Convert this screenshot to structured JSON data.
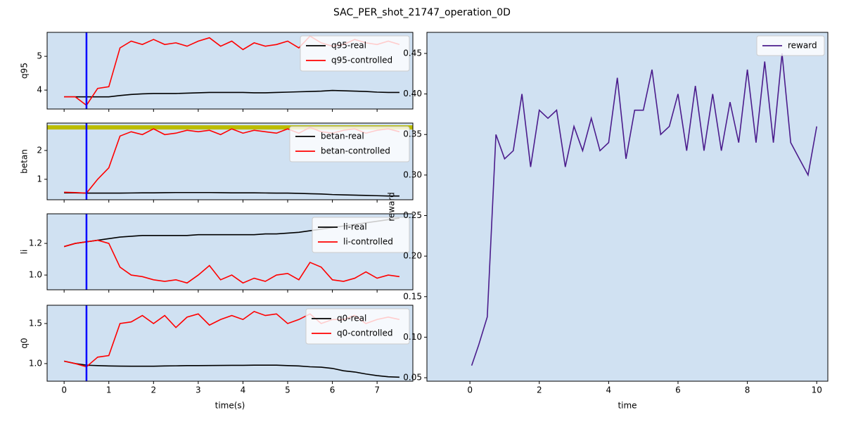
{
  "title": "SAC_PER_shot_21747_operation_0D",
  "chart_data": [
    {
      "type": "line",
      "ylabel": "q95",
      "xlim": [
        -0.38,
        7.8
      ],
      "ylim": [
        3.44,
        5.71
      ],
      "xticks": [
        0,
        1,
        2,
        3,
        4,
        5,
        6,
        7
      ],
      "yticks": [
        4,
        5
      ],
      "show_xtick_labels": false,
      "vline": 0.5,
      "vline_color": "#0000ff",
      "legend": "upper right",
      "background": "#d0e1f2",
      "x": [
        0,
        0.25,
        0.5,
        0.75,
        1,
        1.25,
        1.5,
        1.75,
        2,
        2.25,
        2.5,
        2.75,
        3,
        3.25,
        3.5,
        3.75,
        4,
        4.25,
        4.5,
        4.75,
        5,
        5.25,
        5.5,
        5.75,
        6,
        6.25,
        6.5,
        6.75,
        7,
        7.25,
        7.5
      ],
      "series": [
        {
          "name": "q95-real",
          "color": "#000000",
          "values": [
            3.8,
            3.8,
            3.8,
            3.8,
            3.8,
            3.84,
            3.87,
            3.89,
            3.9,
            3.9,
            3.9,
            3.91,
            3.92,
            3.93,
            3.93,
            3.93,
            3.93,
            3.92,
            3.92,
            3.93,
            3.94,
            3.95,
            3.96,
            3.97,
            3.99,
            3.98,
            3.97,
            3.96,
            3.94,
            3.93,
            3.93
          ]
        },
        {
          "name": "q95-controlled",
          "color": "#ff0000",
          "values": [
            3.8,
            3.8,
            3.55,
            4.05,
            4.1,
            5.25,
            5.45,
            5.35,
            5.5,
            5.35,
            5.4,
            5.3,
            5.45,
            5.55,
            5.3,
            5.45,
            5.2,
            5.4,
            5.3,
            5.35,
            5.45,
            5.25,
            5.6,
            5.4,
            5.3,
            5.35,
            5.5,
            5.4,
            5.35,
            5.45,
            5.35
          ]
        }
      ]
    },
    {
      "type": "line",
      "ylabel": "betan",
      "xlim": [
        -0.38,
        7.8
      ],
      "ylim": [
        0.29,
        2.95
      ],
      "xticks": [
        0,
        1,
        2,
        3,
        4,
        5,
        6,
        7
      ],
      "yticks": [
        1,
        2
      ],
      "show_xtick_labels": false,
      "vline": 0.5,
      "vline_color": "#0000ff",
      "hline": 2.8,
      "hline_color": "#bcbd00",
      "legend": "upper right",
      "background": "#d0e1f2",
      "x": [
        0,
        0.25,
        0.5,
        0.75,
        1,
        1.25,
        1.5,
        1.75,
        2,
        2.25,
        2.5,
        2.75,
        3,
        3.25,
        3.5,
        3.75,
        4,
        4.25,
        4.5,
        4.75,
        5,
        5.25,
        5.5,
        5.75,
        6,
        6.25,
        6.5,
        6.75,
        7,
        7.25,
        7.5
      ],
      "series": [
        {
          "name": "betan-real",
          "color": "#000000",
          "values": [
            0.53,
            0.53,
            0.52,
            0.52,
            0.52,
            0.52,
            0.525,
            0.53,
            0.53,
            0.535,
            0.54,
            0.54,
            0.54,
            0.54,
            0.535,
            0.53,
            0.53,
            0.53,
            0.525,
            0.52,
            0.52,
            0.51,
            0.5,
            0.49,
            0.47,
            0.46,
            0.45,
            0.44,
            0.43,
            0.42,
            0.42
          ]
        },
        {
          "name": "betan-controlled",
          "color": "#ff0000",
          "values": [
            0.55,
            0.54,
            0.52,
            1.0,
            1.4,
            2.5,
            2.65,
            2.55,
            2.75,
            2.55,
            2.6,
            2.7,
            2.65,
            2.7,
            2.55,
            2.75,
            2.6,
            2.7,
            2.65,
            2.6,
            2.75,
            2.6,
            2.8,
            2.65,
            2.6,
            2.7,
            2.75,
            2.6,
            2.7,
            2.75,
            2.65
          ]
        }
      ]
    },
    {
      "type": "line",
      "ylabel": "li",
      "xlim": [
        -0.38,
        7.8
      ],
      "ylim": [
        0.907,
        1.387
      ],
      "xticks": [
        0,
        1,
        2,
        3,
        4,
        5,
        6,
        7
      ],
      "yticks": [
        {
          "value": 1.0,
          "label": "1.0"
        },
        1.2
      ],
      "show_xtick_labels": false,
      "vline": 0.5,
      "vline_color": "#0000ff",
      "legend": "upper right",
      "background": "#d0e1f2",
      "x": [
        0,
        0.25,
        0.5,
        0.75,
        1,
        1.25,
        1.5,
        1.75,
        2,
        2.25,
        2.5,
        2.75,
        3,
        3.25,
        3.5,
        3.75,
        4,
        4.25,
        4.5,
        4.75,
        5,
        5.25,
        5.5,
        5.75,
        6,
        6.25,
        6.5,
        6.75,
        7,
        7.25,
        7.5
      ],
      "series": [
        {
          "name": "li-real",
          "color": "#000000",
          "values": [
            1.18,
            1.2,
            1.21,
            1.22,
            1.23,
            1.24,
            1.245,
            1.25,
            1.25,
            1.25,
            1.25,
            1.25,
            1.255,
            1.255,
            1.255,
            1.255,
            1.255,
            1.255,
            1.26,
            1.26,
            1.265,
            1.27,
            1.28,
            1.29,
            1.3,
            1.31,
            1.32,
            1.33,
            1.34,
            1.35,
            1.36
          ]
        },
        {
          "name": "li-controlled",
          "color": "#ff0000",
          "values": [
            1.18,
            1.2,
            1.21,
            1.22,
            1.2,
            1.05,
            1.0,
            0.99,
            0.97,
            0.96,
            0.97,
            0.95,
            1.0,
            1.06,
            0.97,
            1.0,
            0.95,
            0.98,
            0.96,
            1.0,
            1.01,
            0.97,
            1.08,
            1.05,
            0.97,
            0.96,
            0.98,
            1.02,
            0.98,
            1.0,
            0.99
          ]
        }
      ]
    },
    {
      "type": "line",
      "ylabel": "q0",
      "xlabel": "time(s)",
      "xlim": [
        -0.38,
        7.8
      ],
      "ylim": [
        0.78,
        1.728
      ],
      "xticks": [
        0,
        1,
        2,
        3,
        4,
        5,
        6,
        7
      ],
      "yticks": [
        {
          "value": 1.0,
          "label": "1.0"
        },
        1.5
      ],
      "show_xtick_labels": true,
      "vline": 0.5,
      "vline_color": "#0000ff",
      "legend": "upper right",
      "background": "#d0e1f2",
      "x": [
        0,
        0.25,
        0.5,
        0.75,
        1,
        1.25,
        1.5,
        1.75,
        2,
        2.25,
        2.5,
        2.75,
        3,
        3.25,
        3.5,
        3.75,
        4,
        4.25,
        4.5,
        4.75,
        5,
        5.25,
        5.5,
        5.75,
        6,
        6.25,
        6.5,
        6.75,
        7,
        7.25,
        7.5
      ],
      "series": [
        {
          "name": "q0-real",
          "color": "#000000",
          "values": [
            1.03,
            1.0,
            0.98,
            0.975,
            0.97,
            0.968,
            0.967,
            0.967,
            0.967,
            0.97,
            0.972,
            0.975,
            0.975,
            0.976,
            0.977,
            0.978,
            0.978,
            0.98,
            0.98,
            0.98,
            0.975,
            0.97,
            0.96,
            0.955,
            0.94,
            0.91,
            0.895,
            0.87,
            0.85,
            0.835,
            0.83
          ]
        },
        {
          "name": "q0-controlled",
          "color": "#ff0000",
          "values": [
            1.03,
            1.0,
            0.96,
            1.08,
            1.1,
            1.5,
            1.52,
            1.6,
            1.5,
            1.6,
            1.45,
            1.58,
            1.62,
            1.48,
            1.55,
            1.6,
            1.55,
            1.65,
            1.6,
            1.62,
            1.5,
            1.55,
            1.62,
            1.5,
            1.55,
            1.55,
            1.6,
            1.5,
            1.55,
            1.58,
            1.55
          ]
        }
      ]
    },
    {
      "type": "line",
      "ylabel": "reward",
      "xlabel": "time",
      "xlim": [
        -1.24,
        10.32
      ],
      "ylim": [
        0.0457,
        0.476
      ],
      "xticks": [
        0,
        2,
        4,
        6,
        8,
        10
      ],
      "show_xtick_labels": true,
      "yticks": [
        0.05,
        {
          "value": 0.1,
          "label": "0.10"
        },
        0.15,
        {
          "value": 0.2,
          "label": "0.20"
        },
        0.25,
        {
          "value": 0.3,
          "label": "0.30"
        },
        0.35,
        {
          "value": 0.4,
          "label": "0.40"
        },
        0.45
      ],
      "legend": "upper right",
      "background": "#d0e1f2",
      "x": [
        0.05,
        0.25,
        0.5,
        0.75,
        1,
        1.25,
        1.5,
        1.75,
        2,
        2.25,
        2.5,
        2.75,
        3,
        3.25,
        3.5,
        3.75,
        4,
        4.25,
        4.5,
        4.75,
        5,
        5.25,
        5.5,
        5.75,
        6,
        6.25,
        6.5,
        6.75,
        7,
        7.25,
        7.5,
        7.75,
        8,
        8.25,
        8.5,
        8.75,
        9,
        9.25,
        9.5,
        9.75,
        10
      ],
      "series": [
        {
          "name": "reward",
          "color": "#4b1c8c",
          "values": [
            0.065,
            0.09,
            0.125,
            0.35,
            0.32,
            0.33,
            0.4,
            0.31,
            0.38,
            0.37,
            0.38,
            0.31,
            0.36,
            0.33,
            0.37,
            0.33,
            0.34,
            0.42,
            0.32,
            0.38,
            0.38,
            0.43,
            0.35,
            0.36,
            0.4,
            0.33,
            0.41,
            0.33,
            0.4,
            0.33,
            0.39,
            0.34,
            0.43,
            0.34,
            0.44,
            0.34,
            0.45,
            0.34,
            0.32,
            0.3,
            0.36
          ]
        }
      ]
    }
  ]
}
